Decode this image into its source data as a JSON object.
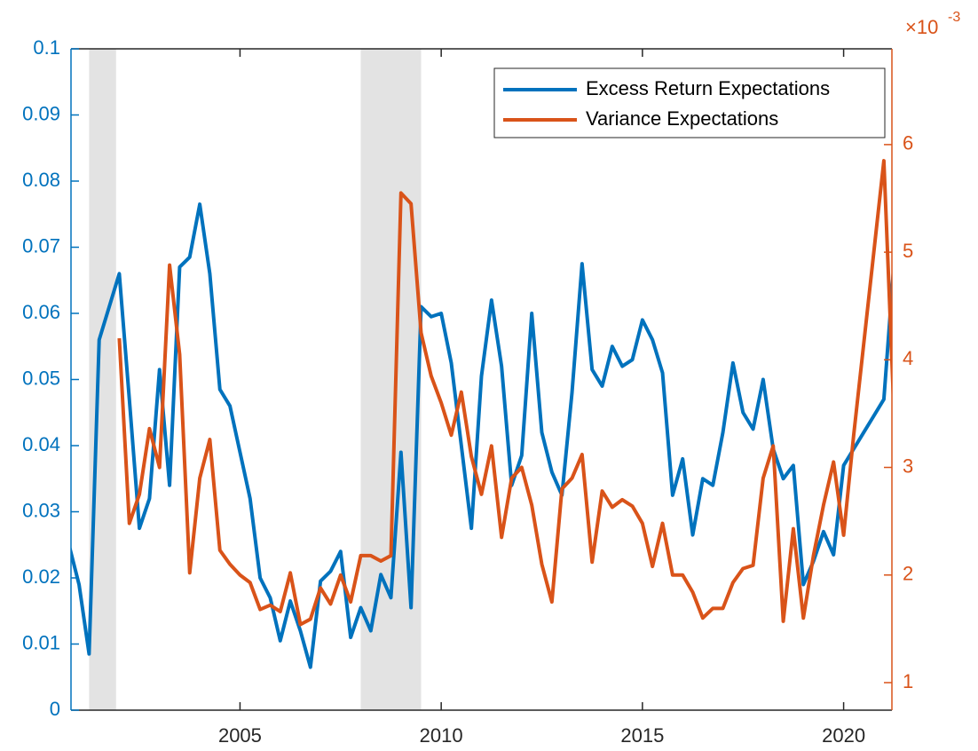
{
  "chart_data": {
    "type": "line",
    "x": [
      2000.75,
      2001.0,
      2001.25,
      2001.5,
      2001.75,
      2002.0,
      2002.25,
      2002.5,
      2002.75,
      2003.0,
      2003.25,
      2003.5,
      2003.75,
      2004.0,
      2004.25,
      2004.5,
      2004.75,
      2005.0,
      2005.25,
      2005.5,
      2005.75,
      2006.0,
      2006.25,
      2006.5,
      2006.75,
      2007.0,
      2007.25,
      2007.5,
      2007.75,
      2008.0,
      2008.25,
      2008.5,
      2008.75,
      2009.0,
      2009.25,
      2009.5,
      2009.75,
      2010.0,
      2010.25,
      2010.5,
      2010.75,
      2011.0,
      2011.25,
      2011.5,
      2011.75,
      2012.0,
      2012.25,
      2012.5,
      2012.75,
      2013.0,
      2013.25,
      2013.5,
      2013.75,
      2014.0,
      2014.25,
      2014.5,
      2014.75,
      2015.0,
      2015.25,
      2015.5,
      2015.75,
      2016.0,
      2016.25,
      2016.5,
      2016.75,
      2017.0,
      2017.25,
      2017.5,
      2017.75,
      2018.0,
      2018.25,
      2018.5,
      2018.75,
      2019.0,
      2019.25,
      2019.5,
      2019.75,
      2020.0,
      2020.25,
      2020.5,
      2020.75,
      2021.0,
      2021.25,
      2021.5
    ],
    "series": [
      {
        "name": "Excess Return Expectations",
        "color": "#0072BD",
        "axis": "y",
        "values": [
          0.025,
          0.019,
          0.0085,
          0.056,
          0.061,
          0.066,
          0.047,
          0.0275,
          0.032,
          0.0515,
          0.034,
          0.067,
          0.0685,
          0.0765,
          0.066,
          0.0485,
          0.046,
          0.039,
          0.032,
          0.02,
          0.017,
          0.0105,
          0.0165,
          0.012,
          0.0065,
          0.0195,
          0.021,
          0.024,
          0.011,
          0.0155,
          0.012,
          0.0205,
          0.017,
          0.039,
          0.0155,
          0.061,
          0.0595,
          0.06,
          0.0525,
          0.04,
          0.0275,
          0.0505,
          0.062,
          0.052,
          0.034,
          0.0385,
          0.06,
          0.042,
          0.036,
          0.0325,
          0.048,
          0.0675,
          0.0515,
          0.049,
          0.055,
          0.052,
          0.053,
          0.059,
          0.056,
          0.051,
          0.0325,
          0.038,
          0.0265,
          0.035,
          0.034,
          0.042,
          0.0525,
          0.045,
          0.0425,
          0.05,
          0.0395,
          0.035,
          0.037,
          0.019,
          0.0225,
          0.027,
          0.0235,
          0.037,
          0.0395,
          0.042,
          0.0445,
          0.047,
          0.0675,
          0.066
        ]
      },
      {
        "name": "Variance Expectations",
        "color": "#D95319",
        "axis": "y2",
        "values": [
          null,
          null,
          null,
          null,
          null,
          4.2,
          2.48,
          2.75,
          3.36,
          3.0,
          4.88,
          4.05,
          2.02,
          2.9,
          3.26,
          2.23,
          2.1,
          2.0,
          1.93,
          1.68,
          1.72,
          1.66,
          2.02,
          1.54,
          1.59,
          1.88,
          1.73,
          2.0,
          1.75,
          2.18,
          2.18,
          2.13,
          2.18,
          5.55,
          5.45,
          4.25,
          3.85,
          3.6,
          3.3,
          3.7,
          3.1,
          2.75,
          3.2,
          2.35,
          2.9,
          3.0,
          2.65,
          2.1,
          1.75,
          2.8,
          2.9,
          3.12,
          2.12,
          2.78,
          2.63,
          2.7,
          2.64,
          2.48,
          2.08,
          2.48,
          2.0,
          2.0,
          1.84,
          1.6,
          1.69,
          1.69,
          1.93,
          2.06,
          2.09,
          2.9,
          3.2,
          1.57,
          2.43,
          1.6,
          2.18,
          2.65,
          3.05,
          2.37,
          3.3,
          4.15,
          5.0,
          5.85,
          3.52,
          3.35
        ]
      }
    ],
    "shaded_regions": [
      [
        2001.25,
        2001.92
      ],
      [
        2008.0,
        2009.5
      ]
    ],
    "shade_color": "#e3e3e3",
    "xlim": [
      2000.8,
      2021.2
    ],
    "xticks": [
      2005,
      2010,
      2015,
      2020
    ],
    "ylim": [
      0,
      0.1
    ],
    "yticks": [
      0,
      0.01,
      0.02,
      0.03,
      0.04,
      0.05,
      0.06,
      0.07,
      0.08,
      0.09,
      0.1
    ],
    "y2lim": [
      0.744,
      6.89
    ],
    "y2ticks": [
      1,
      2,
      3,
      4,
      5,
      6
    ],
    "y2_multiplier": "×10",
    "y2_exponent": "-3",
    "legend": "top-right",
    "grid": false
  }
}
